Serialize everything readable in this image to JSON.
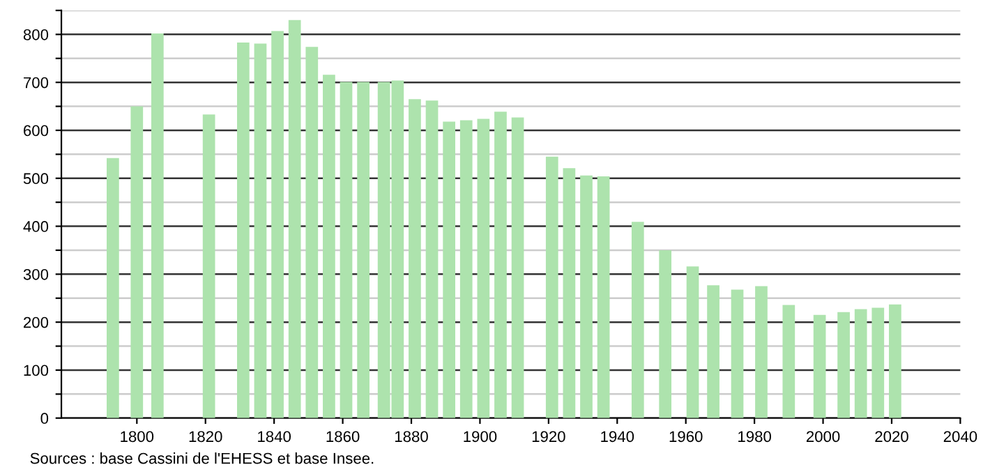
{
  "chart_data": {
    "type": "bar",
    "x": [
      1793,
      1800,
      1806,
      1821,
      1831,
      1836,
      1841,
      1846,
      1851,
      1856,
      1861,
      1866,
      1872,
      1876,
      1881,
      1886,
      1891,
      1896,
      1901,
      1906,
      1911,
      1921,
      1926,
      1931,
      1936,
      1946,
      1954,
      1962,
      1968,
      1975,
      1982,
      1990,
      1999,
      2006,
      2011,
      2016,
      2021
    ],
    "values": [
      542,
      650,
      802,
      633,
      783,
      781,
      807,
      830,
      774,
      716,
      701,
      701,
      701,
      704,
      665,
      662,
      618,
      621,
      624,
      639,
      627,
      545,
      521,
      506,
      504,
      409,
      350,
      316,
      277,
      268,
      275,
      236,
      215,
      221,
      227,
      230,
      237
    ],
    "color": "#ade3ad",
    "xlim": [
      1778,
      2040
    ],
    "xticks": [
      1800,
      1820,
      1840,
      1860,
      1880,
      1900,
      1920,
      1940,
      1960,
      1980,
      2000,
      2020,
      2040
    ],
    "ylim": [
      0,
      850
    ],
    "yticks": [
      0,
      {
        "value": 50,
        "label": null
      },
      100,
      {
        "value": 150,
        "label": null
      },
      200,
      {
        "value": 250,
        "label": null
      },
      300,
      {
        "value": 350,
        "label": null
      },
      400,
      {
        "value": 450,
        "label": null
      },
      500,
      {
        "value": 550,
        "label": null
      },
      600,
      {
        "value": 650,
        "label": null
      },
      700,
      {
        "value": 750,
        "label": null
      },
      800,
      {
        "value": 850,
        "label": null
      }
    ],
    "grid": "y",
    "annotations": [
      "Sources : base Cassini de l'EHESS et base Insee."
    ]
  }
}
